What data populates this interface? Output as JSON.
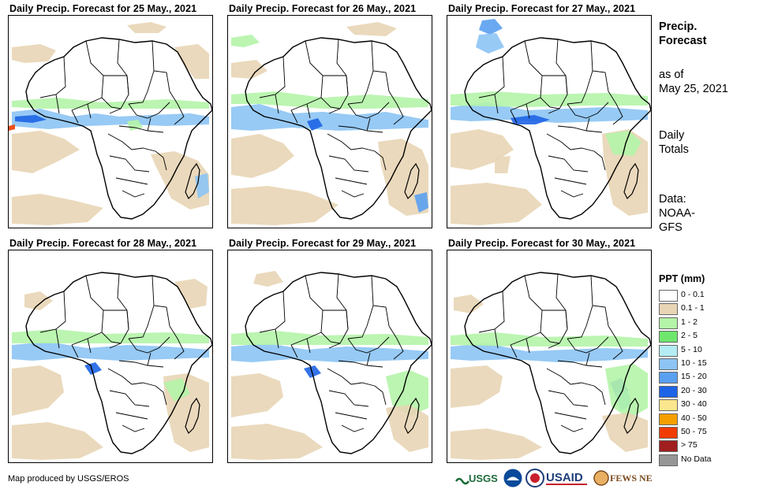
{
  "panels": [
    {
      "title": "Daily Precip. Forecast for 25 May., 2021"
    },
    {
      "title": "Daily Precip. Forecast for 26 May., 2021"
    },
    {
      "title": "Daily Precip. Forecast for 27 May., 2021"
    },
    {
      "title": "Daily Precip. Forecast for 28 May., 2021"
    },
    {
      "title": "Daily Precip. Forecast for 29 May., 2021"
    },
    {
      "title": "Daily Precip. Forecast for 30 May., 2021"
    }
  ],
  "sidebar": {
    "title_line1": "Precip.",
    "title_line2": "Forecast",
    "asof_line1": "as of",
    "asof_line2": "May 25, 2021",
    "totals_line1": "Daily",
    "totals_line2": "Totals",
    "data_line1": "Data:",
    "data_line2": "NOAA-",
    "data_line3": "GFS"
  },
  "legend": {
    "title": "PPT (mm)",
    "items": [
      {
        "label": "0 - 0.1",
        "color": "#ffffff"
      },
      {
        "label": "0.1 - 1",
        "color": "#e8d5b5"
      },
      {
        "label": "1 - 2",
        "color": "#b4f4a8"
      },
      {
        "label": "2 - 5",
        "color": "#6ee66e"
      },
      {
        "label": "5 - 10",
        "color": "#b4ecf4"
      },
      {
        "label": "10 - 15",
        "color": "#8cc4f4"
      },
      {
        "label": "15 - 20",
        "color": "#5aa0f0"
      },
      {
        "label": "20 - 30",
        "color": "#1e64e6"
      },
      {
        "label": "30 - 40",
        "color": "#fae68c"
      },
      {
        "label": "40 - 50",
        "color": "#f5a000"
      },
      {
        "label": "50 - 75",
        "color": "#f03c00"
      },
      {
        "label": "> 75",
        "color": "#a01e1e"
      },
      {
        "label": "No Data",
        "color": "#969696"
      }
    ]
  },
  "footer": {
    "credit": "Map produced by USGS/EROS"
  },
  "logos": {
    "usgs": "USGS",
    "usaid": "USAID",
    "fews": "FEWS NET"
  }
}
